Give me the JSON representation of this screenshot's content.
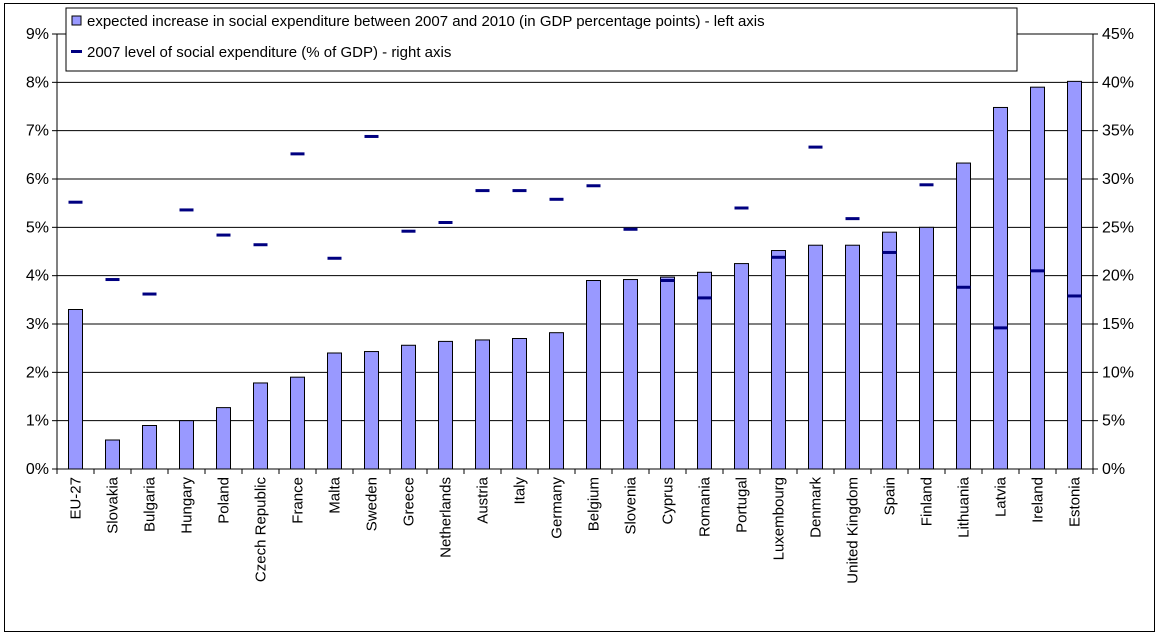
{
  "chart_data": {
    "type": "bar",
    "categories": [
      "EU-27",
      "Slovakia",
      "Bulgaria",
      "Hungary",
      "Poland",
      "Czech Republic",
      "France",
      "Malta",
      "Sweden",
      "Greece",
      "Netherlands",
      "Austria",
      "Italy",
      "Germany",
      "Belgium",
      "Slovenia",
      "Cyprus",
      "Romania",
      "Portugal",
      "Luxembourg",
      "Denmark",
      "United Kingdom",
      "Spain",
      "Finland",
      "Lithuania",
      "Latvia",
      "Ireland",
      "Estonia"
    ],
    "series": [
      {
        "name": "expected increase in social expenditure between 2007 and 2010 (in GDP percentage points) - left axis",
        "axis": "left",
        "mark": "bar",
        "color": "#9999ff",
        "values": [
          3.3,
          0.6,
          0.9,
          1.0,
          1.27,
          1.78,
          1.9,
          2.4,
          2.43,
          2.56,
          2.64,
          2.67,
          2.7,
          2.82,
          3.9,
          3.92,
          3.97,
          4.07,
          4.25,
          4.52,
          4.63,
          4.63,
          4.9,
          5.0,
          6.33,
          7.48,
          7.9,
          8.02
        ]
      },
      {
        "name": "2007 level of social expenditure (% of GDP) - right axis",
        "axis": "right",
        "mark": "dash",
        "color": "#000080",
        "values": [
          27.6,
          19.6,
          18.1,
          26.8,
          24.2,
          23.2,
          32.6,
          21.8,
          34.4,
          24.6,
          25.5,
          28.8,
          28.8,
          27.9,
          29.3,
          24.8,
          19.5,
          17.7,
          27.0,
          21.9,
          33.3,
          25.9,
          22.4,
          29.4,
          18.8,
          14.6,
          20.5,
          17.9
        ]
      }
    ],
    "y_left": {
      "ticks": [
        "0%",
        "1%",
        "2%",
        "3%",
        "4%",
        "5%",
        "6%",
        "7%",
        "8%",
        "9%"
      ],
      "ylim": [
        0,
        9
      ]
    },
    "y_right": {
      "ticks": [
        "0%",
        "5%",
        "10%",
        "15%",
        "20%",
        "25%",
        "30%",
        "35%",
        "40%",
        "45%"
      ],
      "ylim": [
        0,
        45
      ]
    },
    "grid": true,
    "legend_position": "top"
  }
}
